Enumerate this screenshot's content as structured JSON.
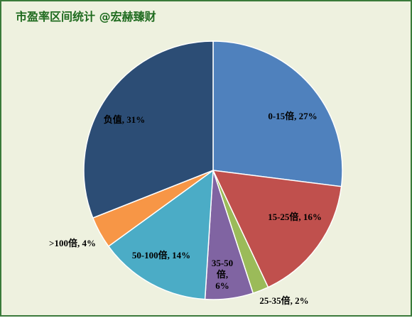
{
  "chart_data": {
    "type": "pie",
    "title": "市盈率区间统计 @宏赫臻财",
    "start_angle_deg": 0,
    "direction": "clockwise",
    "slices": [
      {
        "label": "0-15倍",
        "value": 27,
        "text": "0-15倍, 27%",
        "color": "#4f81bd"
      },
      {
        "label": "15-25倍",
        "value": 16,
        "text": "15-25倍, 16%",
        "color": "#c0504d"
      },
      {
        "label": "25-35倍",
        "value": 2,
        "text": "25-35倍, 2%",
        "color": "#9bbb59"
      },
      {
        "label": "35-50倍",
        "value": 6,
        "text_lines": [
          "35-50",
          "倍,",
          "6%"
        ],
        "color": "#8064a2"
      },
      {
        "label": "50-100倍",
        "value": 14,
        "text": "50-100倍, 14%",
        "color": "#4bacc6"
      },
      {
        "label": ">100倍",
        "value": 4,
        "text": ">100倍, 4%",
        "color": "#f79646"
      },
      {
        "label": "负值",
        "value": 31,
        "text": "负值, 31%",
        "color": "#2c4d75"
      }
    ],
    "legend": "none"
  }
}
